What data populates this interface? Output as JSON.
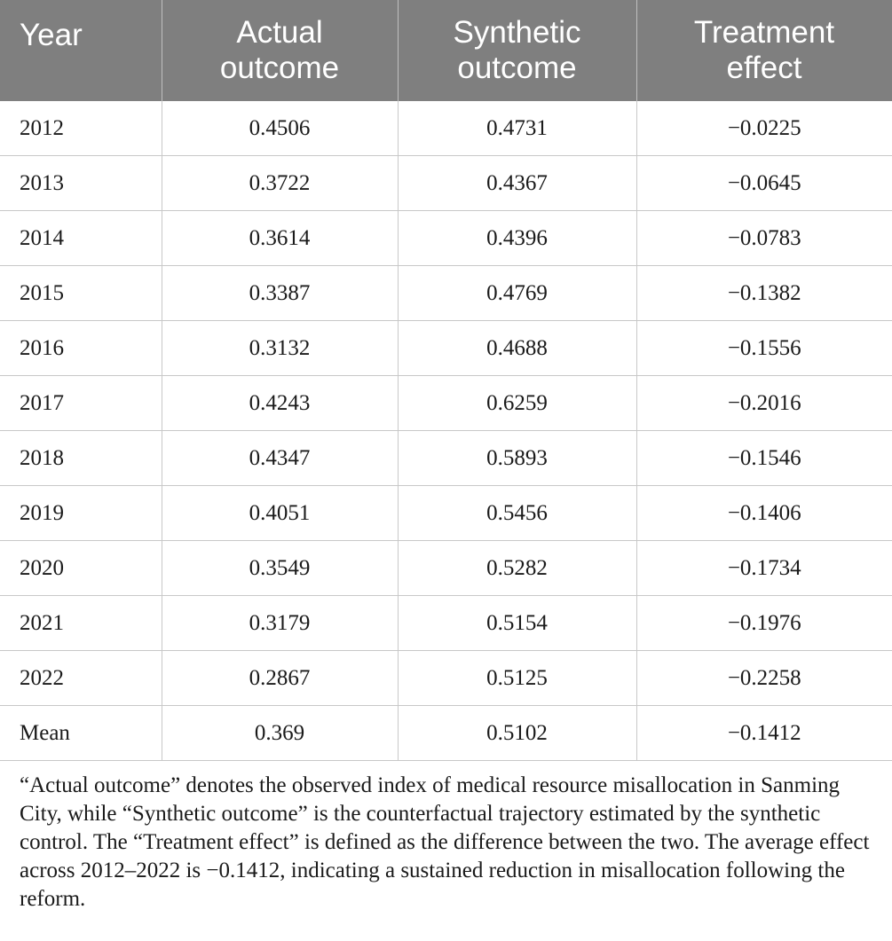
{
  "table": {
    "header": [
      "Year",
      "Actual outcome",
      "Synthetic outcome",
      "Treatment effect"
    ],
    "rows": [
      [
        "2012",
        "0.4506",
        "0.4731",
        "−0.0225"
      ],
      [
        "2013",
        "0.3722",
        "0.4367",
        "−0.0645"
      ],
      [
        "2014",
        "0.3614",
        "0.4396",
        "−0.0783"
      ],
      [
        "2015",
        "0.3387",
        "0.4769",
        "−0.1382"
      ],
      [
        "2016",
        "0.3132",
        "0.4688",
        "−0.1556"
      ],
      [
        "2017",
        "0.4243",
        "0.6259",
        "−0.2016"
      ],
      [
        "2018",
        "0.4347",
        "0.5893",
        "−0.1546"
      ],
      [
        "2019",
        "0.4051",
        "0.5456",
        "−0.1406"
      ],
      [
        "2020",
        "0.3549",
        "0.5282",
        "−0.1734"
      ],
      [
        "2021",
        "0.3179",
        "0.5154",
        "−0.1976"
      ],
      [
        "2022",
        "0.2867",
        "0.5125",
        "−0.2258"
      ],
      [
        "Mean",
        "0.369",
        "0.5102",
        "−0.1412"
      ]
    ],
    "note": "“Actual outcome” denotes the observed index of medical resource misallocation in Sanming City, while “Synthetic outcome” is the counterfactual trajectory estimated by the synthetic control. The “Treatment effect” is defined as the difference between the two. The average effect across 2012–2022 is −0.1412, indicating a sustained reduction in misallocation following the reform."
  }
}
